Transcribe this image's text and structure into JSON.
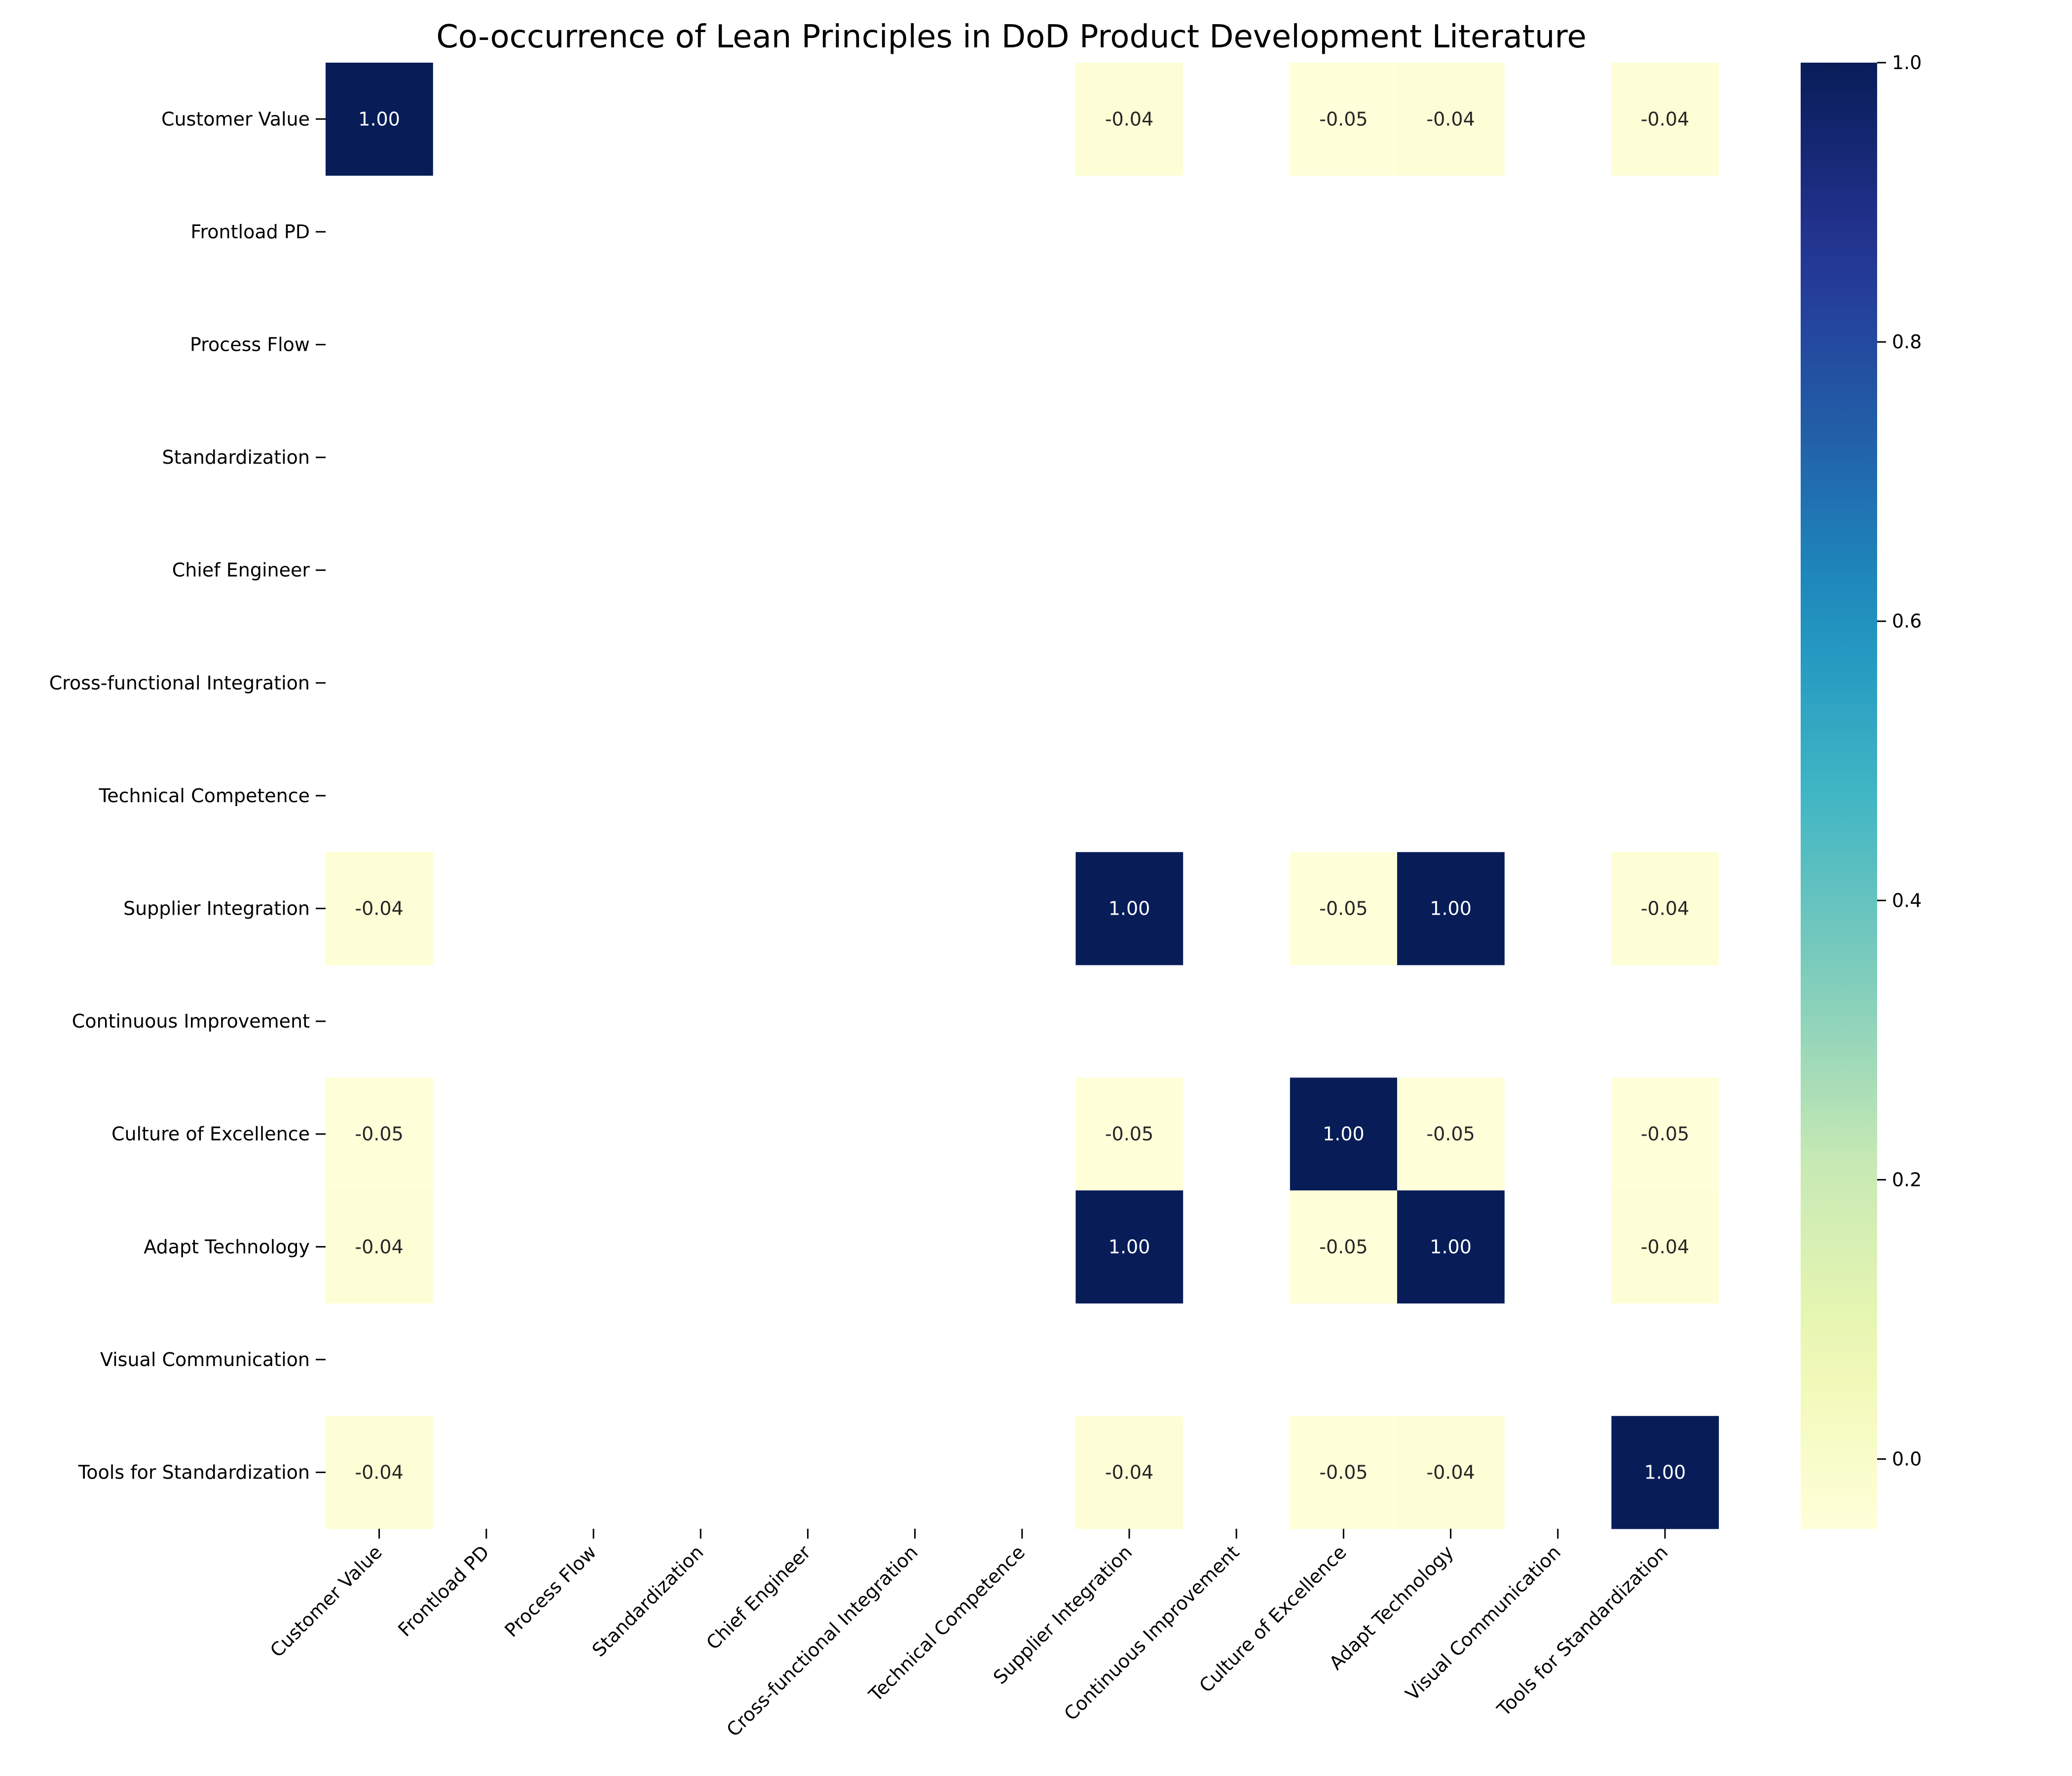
{
  "chart_data": {
    "type": "heatmap",
    "title": "Co-occurrence of Lean Principles in DoD Product Development Literature",
    "xlabel": "",
    "ylabel": "",
    "categories": [
      "Customer Value",
      "Frontload PD",
      "Process Flow",
      "Standardization",
      "Chief Engineer",
      "Cross-functional Integration",
      "Technical Competence",
      "Supplier Integration",
      "Continuous Improvement",
      "Culture of Excellence",
      "Adapt Technology",
      "Visual Communication",
      "Tools for Standardization"
    ],
    "matrix": [
      [
        1.0,
        null,
        null,
        null,
        null,
        null,
        null,
        -0.04,
        null,
        -0.05,
        -0.04,
        null,
        -0.04
      ],
      [
        null,
        null,
        null,
        null,
        null,
        null,
        null,
        null,
        null,
        null,
        null,
        null,
        null
      ],
      [
        null,
        null,
        null,
        null,
        null,
        null,
        null,
        null,
        null,
        null,
        null,
        null,
        null
      ],
      [
        null,
        null,
        null,
        null,
        null,
        null,
        null,
        null,
        null,
        null,
        null,
        null,
        null
      ],
      [
        null,
        null,
        null,
        null,
        null,
        null,
        null,
        null,
        null,
        null,
        null,
        null,
        null
      ],
      [
        null,
        null,
        null,
        null,
        null,
        null,
        null,
        null,
        null,
        null,
        null,
        null,
        null
      ],
      [
        null,
        null,
        null,
        null,
        null,
        null,
        null,
        null,
        null,
        null,
        null,
        null,
        null
      ],
      [
        -0.04,
        null,
        null,
        null,
        null,
        null,
        null,
        1.0,
        null,
        -0.05,
        1.0,
        null,
        -0.04
      ],
      [
        null,
        null,
        null,
        null,
        null,
        null,
        null,
        null,
        null,
        null,
        null,
        null,
        null
      ],
      [
        -0.05,
        null,
        null,
        null,
        null,
        null,
        null,
        -0.05,
        null,
        1.0,
        -0.05,
        null,
        -0.05
      ],
      [
        -0.04,
        null,
        null,
        null,
        null,
        null,
        null,
        1.0,
        null,
        -0.05,
        1.0,
        null,
        -0.04
      ],
      [
        null,
        null,
        null,
        null,
        null,
        null,
        null,
        null,
        null,
        null,
        null,
        null,
        null
      ],
      [
        -0.04,
        null,
        null,
        null,
        null,
        null,
        null,
        -0.04,
        null,
        -0.05,
        -0.04,
        null,
        1.0
      ]
    ],
    "value_format": "2 decimals",
    "colormap": "YlGnBu",
    "colorbar": {
      "vmin": -0.05,
      "vmax": 1.0,
      "ticks": [
        "0.0",
        "0.2",
        "0.4",
        "0.6",
        "0.8",
        "1.0"
      ]
    },
    "grid": false,
    "legend": "colorbar-right"
  }
}
